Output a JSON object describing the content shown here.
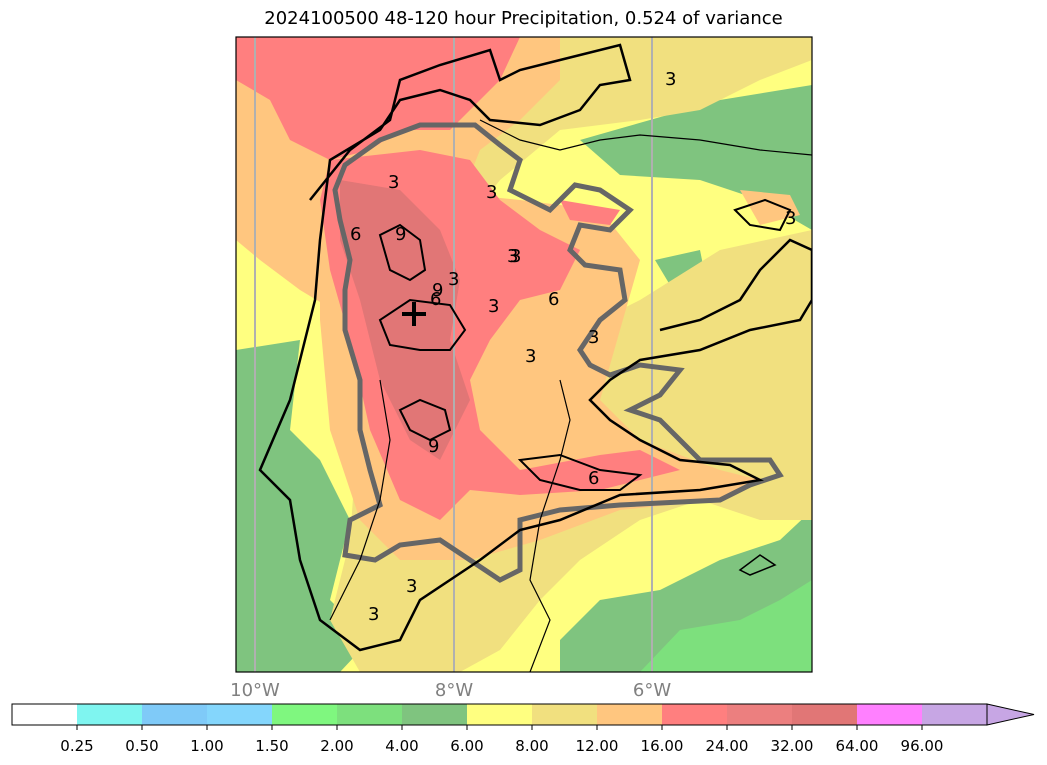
{
  "title": "2024100500 48-120 hour Precipitation, 0.524 of variance",
  "map": {
    "longitude_labels": [
      "10°W",
      "8°W",
      "6°W"
    ],
    "contour_labels": [
      "3",
      "3",
      "3",
      "3",
      "3",
      "3",
      "3",
      "3",
      "3",
      "6",
      "6",
      "6",
      "6",
      "9",
      "9",
      "9",
      "3",
      "3",
      "3"
    ],
    "marker": "plus-marker"
  },
  "colorbar": {
    "ticks": [
      "0.25",
      "0.50",
      "1.00",
      "1.50",
      "2.00",
      "4.00",
      "6.00",
      "8.00",
      "12.00",
      "16.00",
      "24.00",
      "32.00",
      "64.00",
      "96.00"
    ],
    "colors": [
      "#ffffff",
      "#7ff5f0",
      "#7fcaf8",
      "#84d6fc",
      "#7ff77f",
      "#7de07d",
      "#7fc47f",
      "#ffff80",
      "#f1e07f",
      "#ffc67f",
      "#ff7f7f",
      "#ec7f7f",
      "#e17676",
      "#ff80ff",
      "#c7a6e4"
    ]
  },
  "colors": {
    "yellow": "#ffff80",
    "khaki": "#f1e07f",
    "orange": "#ffc67f",
    "red": "#ff7f7f",
    "darkred": "#e17676",
    "green": "#7fc47f",
    "lightgreen": "#7de07d",
    "gray_contour": "#666666"
  }
}
